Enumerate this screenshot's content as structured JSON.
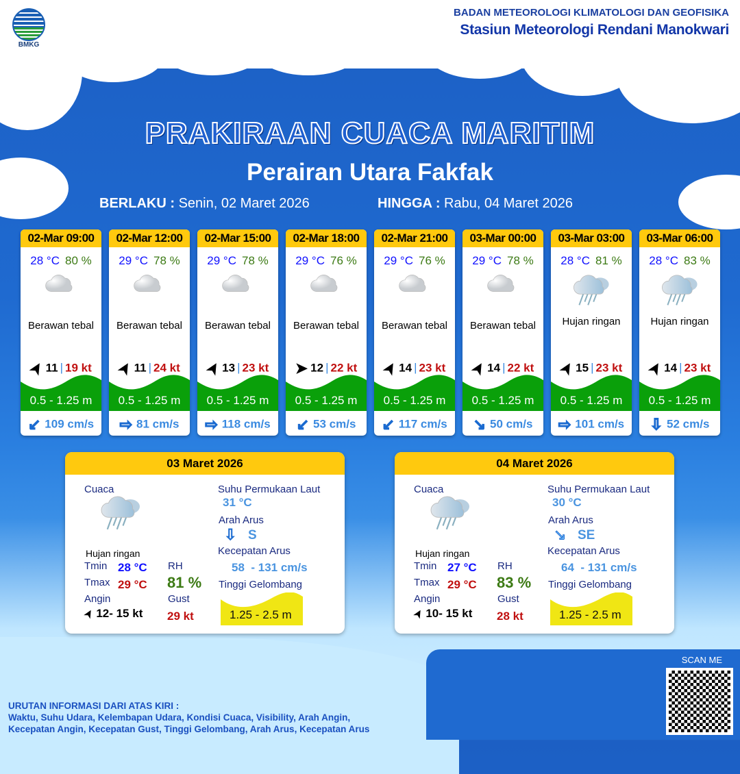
{
  "header": {
    "logo_text": "BMKG",
    "org": "BADAN METEOROLOGI KLIMATOLOGI DAN GEOFISIKA",
    "station": "Stasiun Meteorologi Rendani Manokwari"
  },
  "title": "PRAKIRAAN CUACA MARITIM",
  "subtitle": "Perairan Utara Fakfak",
  "validity": {
    "from_label": "BERLAKU :",
    "from": "Senin, 02 Maret 2026",
    "to_label": "HINGGA :",
    "to": "Rabu, 04 Maret 2026"
  },
  "colors": {
    "header_yellow": "#ffc90e",
    "wave_green": "#0aa00a",
    "wave_yellow": "#f0e614",
    "temp": "#1010ff",
    "rh": "#3c7a14",
    "gust": "#c01010"
  },
  "forecasts": [
    {
      "time": "02-Mar 09:00",
      "temp": "28 °C",
      "rh": "80 %",
      "icon": "cloud-icon",
      "condition": "Berawan tebal",
      "wind_dir_deg": -60,
      "wind": "11",
      "gust": "19 kt",
      "wave": "0.5 - 1.25 m",
      "current_arrow": "↙",
      "current": "109 cm/s"
    },
    {
      "time": "02-Mar 12:00",
      "temp": "29 °C",
      "rh": "78 %",
      "icon": "cloud-icon",
      "condition": "Berawan tebal",
      "wind_dir_deg": -60,
      "wind": "11",
      "gust": "24 kt",
      "wave": "0.5 - 1.25 m",
      "current_arrow": "⇨",
      "current": "81 cm/s"
    },
    {
      "time": "02-Mar 15:00",
      "temp": "29 °C",
      "rh": "78 %",
      "icon": "cloud-icon",
      "condition": "Berawan tebal",
      "wind_dir_deg": -60,
      "wind": "13",
      "gust": "23 kt",
      "wave": "0.5 - 1.25 m",
      "current_arrow": "⇨",
      "current": "118 cm/s"
    },
    {
      "time": "02-Mar 18:00",
      "temp": "29 °C",
      "rh": "76 %",
      "icon": "cloud-icon",
      "condition": "Berawan tebal",
      "wind_dir_deg": 0,
      "wind": "12",
      "gust": "22 kt",
      "wave": "0.5 - 1.25 m",
      "current_arrow": "↙",
      "current": "53 cm/s"
    },
    {
      "time": "02-Mar 21:00",
      "temp": "29 °C",
      "rh": "76 %",
      "icon": "cloud-icon",
      "condition": "Berawan tebal",
      "wind_dir_deg": -60,
      "wind": "14",
      "gust": "23 kt",
      "wave": "0.5 - 1.25 m",
      "current_arrow": "↙",
      "current": "117 cm/s"
    },
    {
      "time": "03-Mar 00:00",
      "temp": "29 °C",
      "rh": "78 %",
      "icon": "cloud-icon",
      "condition": "Berawan tebal",
      "wind_dir_deg": -60,
      "wind": "14",
      "gust": "22 kt",
      "wave": "0.5 - 1.25 m",
      "current_arrow": "↘",
      "current": "50 cm/s"
    },
    {
      "time": "03-Mar 03:00",
      "temp": "28 °C",
      "rh": "81 %",
      "icon": "rain-cloud-icon",
      "condition": "Hujan ringan",
      "wind_dir_deg": -60,
      "wind": "15",
      "gust": "23 kt",
      "wave": "0.5 - 1.25 m",
      "current_arrow": "⇨",
      "current": "101 cm/s"
    },
    {
      "time": "03-Mar 06:00",
      "temp": "28 °C",
      "rh": "83 %",
      "icon": "rain-cloud-icon",
      "condition": "Hujan ringan",
      "wind_dir_deg": -60,
      "wind": "14",
      "gust": "23 kt",
      "wave": "0.5 - 1.25 m",
      "current_arrow": "⇩",
      "current": "52 cm/s"
    }
  ],
  "labels": {
    "weather": "Cuaca",
    "tmin": "Tmin",
    "tmax": "Tmax",
    "wind": "Angin",
    "rh": "RH",
    "gust": "Gust",
    "sst": "Suhu Permukaan Laut",
    "current_dir": "Arah Arus",
    "current_speed": "Kecepatan Arus",
    "wave": "Tinggi Gelombang"
  },
  "days": [
    {
      "date": "03 Maret 2026",
      "condition": "Hujan ringan",
      "tmin": "28 °C",
      "tmax": "29 °C",
      "wind": "12- 15 kt",
      "rh": "81 %",
      "gust": "29 kt",
      "sst": "31 °C",
      "current_arrow": "⇩",
      "current_dir": "S",
      "current_speed": "58  - 131 cm/s",
      "wave": "1.25 - 2.5 m"
    },
    {
      "date": "04 Maret 2026",
      "condition": "Hujan ringan",
      "tmin": "27 °C",
      "tmax": "29 °C",
      "wind": "10- 15 kt",
      "rh": "83 %",
      "gust": "28 kt",
      "sst": "30 °C",
      "current_arrow": "↘",
      "current_dir": "SE",
      "current_speed": "64  - 131 cm/s",
      "wave": "1.25 - 2.5 m"
    }
  ],
  "qr": {
    "label": "SCAN ME"
  },
  "footer": {
    "heading": "URUTAN INFORMASI DARI ATAS KIRI :",
    "line1": "Waktu, Suhu Udara, Kelembapan Udara, Kondisi Cuaca, Visibility, Arah Angin,",
    "line2": "Kecepatan Angin, Kecepatan Gust, Tinggi Gelombang, Arah Arus, Kecepatan Arus"
  }
}
